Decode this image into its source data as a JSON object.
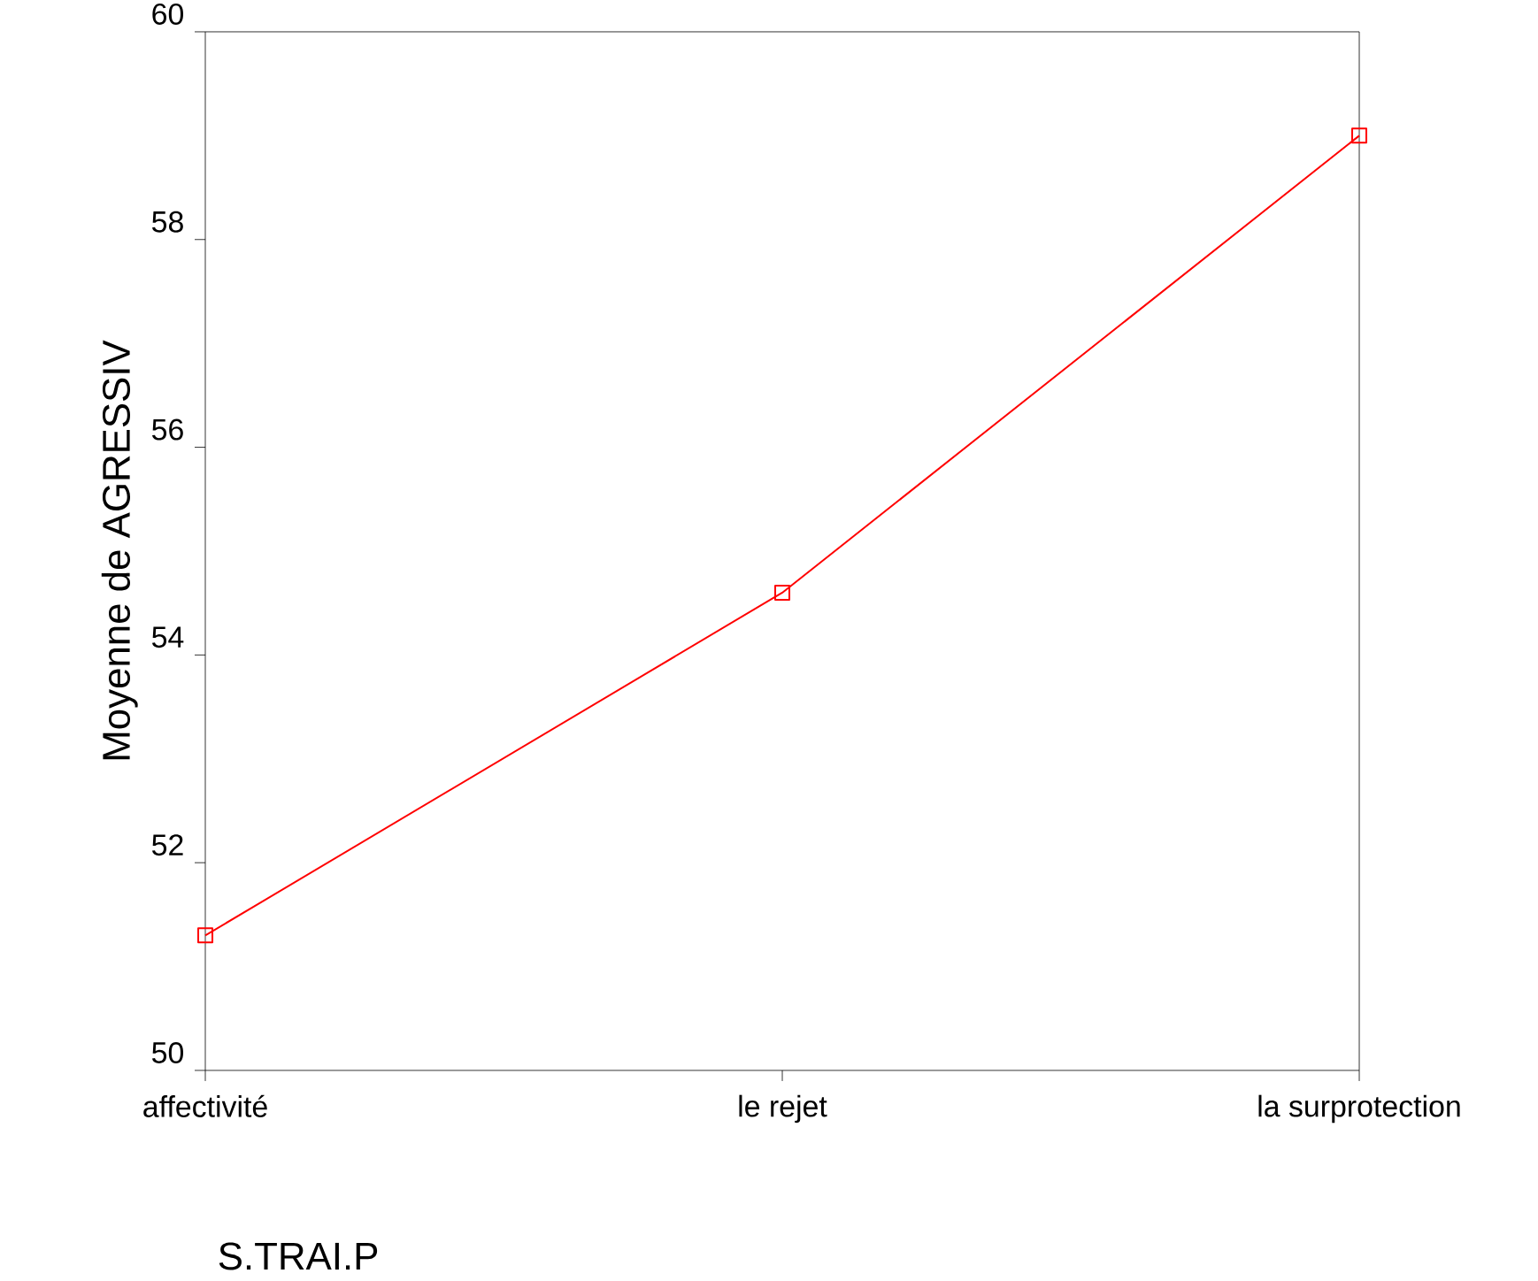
{
  "chart_data": {
    "type": "line",
    "xlabel": "S.TRAI.P",
    "ylabel": "Moyenne de AGRESSIV",
    "categories": [
      "affectivité",
      "le rejet",
      "la surprotection"
    ],
    "series": [
      {
        "color": "#ff0000",
        "values": [
          51.3,
          54.6,
          59.0
        ]
      }
    ],
    "ylim": [
      50,
      60
    ],
    "yticks": [
      50,
      52,
      54,
      56,
      58,
      60
    ],
    "marker": "square",
    "line_style": "solid"
  }
}
